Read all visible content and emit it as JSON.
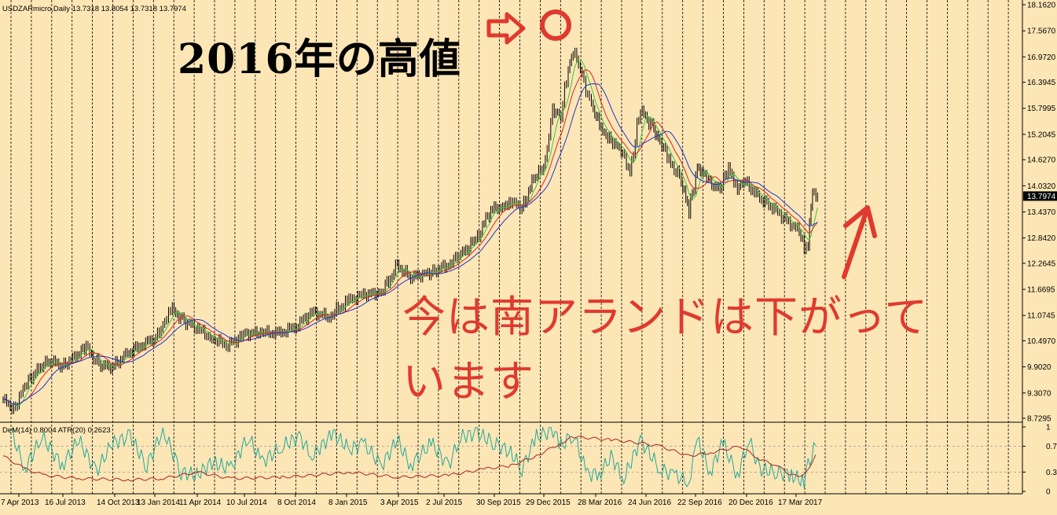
{
  "window": {
    "symbol_header": "USDZARmicro,Daily  13.7318 13.8054 13.7318 13.7974",
    "indicator_header": "DeM(14) 0.8004  ATR(20) 0.2623"
  },
  "annotations": {
    "high_label": "2016年の高値",
    "current_label": "今は南アランドは下がっています"
  },
  "colors": {
    "background": "#fde6b6",
    "grid": "#000000",
    "candles": "#000000",
    "ma_fast": "#33cc33",
    "ma_mid": "#dd2222",
    "ma_slow": "#2233cc",
    "demarker": "#22a99a",
    "atr": "#aa2222",
    "annotation_red": "#e03a2e"
  },
  "chart_data": [
    {
      "type": "line",
      "title": "USDZARmicro,Daily",
      "ohlc_last": {
        "open": 13.7318,
        "high": 13.8054,
        "low": 13.7318,
        "close": 13.7974
      },
      "ylim": [
        8.7295,
        18.162
      ],
      "y_ticks": [
        "18.1620",
        "17.5670",
        "16.9720",
        "16.3945",
        "15.7995",
        "15.2045",
        "14.6270",
        "14.0320",
        "13.4370",
        "12.8420",
        "12.2645",
        "11.6695",
        "11.0745",
        "10.4970",
        "9.9020",
        "9.3070",
        "8.7295"
      ],
      "current_price_label": "13.7974",
      "x_tick_labels": [
        "7 Apr 2013",
        "16 Jul 2013",
        "14 Oct 2013",
        "13 Jan 2014",
        "11 Apr 2014",
        "10 Jul 2014",
        "8 Oct 2014",
        "8 Jan 2015",
        "3 Apr 2015",
        "2 Jul 2015",
        "30 Sep 2015",
        "29 Dec 2015",
        "28 Mar 2016",
        "24 Jun 2016",
        "22 Sep 2016",
        "20 Dec 2016",
        "17 Mar 2017"
      ],
      "grid": "vertical-dashed",
      "series": [
        {
          "values": [
            {
              "x": "2013-04-01",
              "y": 9.15
            },
            {
              "x": "2013-04-20",
              "y": 8.95
            },
            {
              "x": "2013-05-10",
              "y": 9.45
            },
            {
              "x": "2013-06-01",
              "y": 9.85
            },
            {
              "x": "2013-06-25",
              "y": 10.05
            },
            {
              "x": "2013-07-16",
              "y": 9.92
            },
            {
              "x": "2013-08-10",
              "y": 10.15
            },
            {
              "x": "2013-08-28",
              "y": 10.35
            },
            {
              "x": "2013-09-20",
              "y": 9.95
            },
            {
              "x": "2013-10-14",
              "y": 9.9
            },
            {
              "x": "2013-11-10",
              "y": 10.2
            },
            {
              "x": "2013-12-10",
              "y": 10.45
            },
            {
              "x": "2013-12-31",
              "y": 10.55
            },
            {
              "x": "2014-01-13",
              "y": 10.9
            },
            {
              "x": "2014-01-30",
              "y": 11.2
            },
            {
              "x": "2014-02-20",
              "y": 10.95
            },
            {
              "x": "2014-03-20",
              "y": 10.75
            },
            {
              "x": "2014-04-11",
              "y": 10.55
            },
            {
              "x": "2014-05-10",
              "y": 10.4
            },
            {
              "x": "2014-06-10",
              "y": 10.65
            },
            {
              "x": "2014-07-10",
              "y": 10.7
            },
            {
              "x": "2014-08-10",
              "y": 10.65
            },
            {
              "x": "2014-09-10",
              "y": 10.85
            },
            {
              "x": "2014-10-08",
              "y": 11.15
            },
            {
              "x": "2014-11-08",
              "y": 11.05
            },
            {
              "x": "2014-12-10",
              "y": 11.4
            },
            {
              "x": "2015-01-08",
              "y": 11.55
            },
            {
              "x": "2015-02-10",
              "y": 11.6
            },
            {
              "x": "2015-03-10",
              "y": 12.2
            },
            {
              "x": "2015-04-03",
              "y": 11.95
            },
            {
              "x": "2015-05-10",
              "y": 12.05
            },
            {
              "x": "2015-06-10",
              "y": 12.25
            },
            {
              "x": "2015-07-02",
              "y": 12.45
            },
            {
              "x": "2015-08-01",
              "y": 12.85
            },
            {
              "x": "2015-08-25",
              "y": 13.5
            },
            {
              "x": "2015-09-15",
              "y": 13.55
            },
            {
              "x": "2015-09-30",
              "y": 13.7
            },
            {
              "x": "2015-10-20",
              "y": 13.5
            },
            {
              "x": "2015-11-10",
              "y": 14.2
            },
            {
              "x": "2015-12-01",
              "y": 14.5
            },
            {
              "x": "2015-12-14",
              "y": 15.8
            },
            {
              "x": "2015-12-29",
              "y": 15.6
            },
            {
              "x": "2016-01-11",
              "y": 16.7
            },
            {
              "x": "2016-01-20",
              "y": 17.15
            },
            {
              "x": "2016-02-05",
              "y": 16.5
            },
            {
              "x": "2016-02-25",
              "y": 15.8
            },
            {
              "x": "2016-03-10",
              "y": 15.3
            },
            {
              "x": "2016-03-28",
              "y": 15.1
            },
            {
              "x": "2016-04-15",
              "y": 14.8
            },
            {
              "x": "2016-05-01",
              "y": 14.4
            },
            {
              "x": "2016-05-20",
              "y": 15.75
            },
            {
              "x": "2016-06-10",
              "y": 15.4
            },
            {
              "x": "2016-06-24",
              "y": 15.05
            },
            {
              "x": "2016-07-10",
              "y": 14.6
            },
            {
              "x": "2016-08-01",
              "y": 14.2
            },
            {
              "x": "2016-08-15",
              "y": 13.4
            },
            {
              "x": "2016-08-30",
              "y": 14.5
            },
            {
              "x": "2016-09-10",
              "y": 14.3
            },
            {
              "x": "2016-09-22",
              "y": 14.1
            },
            {
              "x": "2016-10-10",
              "y": 13.95
            },
            {
              "x": "2016-10-25",
              "y": 14.45
            },
            {
              "x": "2016-11-10",
              "y": 14.0
            },
            {
              "x": "2016-11-25",
              "y": 14.1
            },
            {
              "x": "2016-12-20",
              "y": 13.75
            },
            {
              "x": "2017-01-15",
              "y": 13.5
            },
            {
              "x": "2017-02-10",
              "y": 13.2
            },
            {
              "x": "2017-03-01",
              "y": 13.0
            },
            {
              "x": "2017-03-10",
              "y": 12.55
            },
            {
              "x": "2017-03-17",
              "y": 12.8
            },
            {
              "x": "2017-03-25",
              "y": 13.85
            },
            {
              "x": "2017-04-03",
              "y": 13.8
            }
          ]
        }
      ]
    },
    {
      "type": "line",
      "title": "DeM(14) 0.8004  ATR(20) 0.2623",
      "ylim": [
        0,
        1
      ],
      "y_ticks": [
        "1",
        "0.7",
        "0.3",
        "0"
      ],
      "reference_levels": [
        0.7,
        0.3
      ],
      "series": [
        {
          "indicator": "DeMarker",
          "values": [
            {
              "x": "2013-04-15",
              "y": 0.95
            },
            {
              "x": "2013-05-10",
              "y": 0.35
            },
            {
              "x": "2013-06-10",
              "y": 0.85
            },
            {
              "x": "2013-07-16",
              "y": 0.4
            },
            {
              "x": "2013-08-15",
              "y": 0.8
            },
            {
              "x": "2013-09-15",
              "y": 0.3
            },
            {
              "x": "2013-10-14",
              "y": 0.75
            },
            {
              "x": "2013-11-15",
              "y": 0.85
            },
            {
              "x": "2013-12-15",
              "y": 0.4
            },
            {
              "x": "2014-01-13",
              "y": 0.95
            },
            {
              "x": "2014-02-15",
              "y": 0.3
            },
            {
              "x": "2014-03-15",
              "y": 0.25
            },
            {
              "x": "2014-04-11",
              "y": 0.45
            },
            {
              "x": "2014-05-15",
              "y": 0.35
            },
            {
              "x": "2014-06-15",
              "y": 0.85
            },
            {
              "x": "2014-07-10",
              "y": 0.45
            },
            {
              "x": "2014-08-15",
              "y": 0.7
            },
            {
              "x": "2014-09-15",
              "y": 0.85
            },
            {
              "x": "2014-10-08",
              "y": 0.55
            },
            {
              "x": "2014-11-15",
              "y": 0.9
            },
            {
              "x": "2014-12-15",
              "y": 0.65
            },
            {
              "x": "2015-01-08",
              "y": 0.75
            },
            {
              "x": "2015-02-10",
              "y": 0.4
            },
            {
              "x": "2015-03-10",
              "y": 0.8
            },
            {
              "x": "2015-04-03",
              "y": 0.4
            },
            {
              "x": "2015-05-10",
              "y": 0.75
            },
            {
              "x": "2015-06-10",
              "y": 0.4
            },
            {
              "x": "2015-07-02",
              "y": 0.85
            },
            {
              "x": "2015-08-01",
              "y": 0.9
            },
            {
              "x": "2015-09-01",
              "y": 0.75
            },
            {
              "x": "2015-09-30",
              "y": 0.6
            },
            {
              "x": "2015-10-20",
              "y": 0.35
            },
            {
              "x": "2015-11-15",
              "y": 0.85
            },
            {
              "x": "2015-12-15",
              "y": 0.95
            },
            {
              "x": "2015-12-29",
              "y": 0.7
            },
            {
              "x": "2016-01-20",
              "y": 0.9
            },
            {
              "x": "2016-02-15",
              "y": 0.25
            },
            {
              "x": "2016-03-10",
              "y": 0.3
            },
            {
              "x": "2016-03-28",
              "y": 0.55
            },
            {
              "x": "2016-04-20",
              "y": 0.2
            },
            {
              "x": "2016-05-20",
              "y": 0.8
            },
            {
              "x": "2016-06-24",
              "y": 0.35
            },
            {
              "x": "2016-07-20",
              "y": 0.25
            },
            {
              "x": "2016-08-15",
              "y": 0.15
            },
            {
              "x": "2016-08-30",
              "y": 0.8
            },
            {
              "x": "2016-09-22",
              "y": 0.3
            },
            {
              "x": "2016-10-15",
              "y": 0.75
            },
            {
              "x": "2016-11-10",
              "y": 0.25
            },
            {
              "x": "2016-12-01",
              "y": 0.8
            },
            {
              "x": "2016-12-20",
              "y": 0.35
            },
            {
              "x": "2017-01-20",
              "y": 0.3
            },
            {
              "x": "2017-02-15",
              "y": 0.25
            },
            {
              "x": "2017-03-10",
              "y": 0.15
            },
            {
              "x": "2017-03-17",
              "y": 0.4
            },
            {
              "x": "2017-04-03",
              "y": 0.8
            }
          ]
        },
        {
          "indicator": "ATR(20)",
          "values": [
            {
              "x": "2013-04-01",
              "y": 0.55
            },
            {
              "x": "2013-05-10",
              "y": 0.35
            },
            {
              "x": "2013-06-15",
              "y": 0.25
            },
            {
              "x": "2013-08-15",
              "y": 0.2
            },
            {
              "x": "2013-11-15",
              "y": 0.18
            },
            {
              "x": "2014-01-13",
              "y": 0.2
            },
            {
              "x": "2014-03-15",
              "y": 0.3
            },
            {
              "x": "2014-05-15",
              "y": 0.2
            },
            {
              "x": "2014-08-15",
              "y": 0.22
            },
            {
              "x": "2014-10-08",
              "y": 0.25
            },
            {
              "x": "2014-12-15",
              "y": 0.3
            },
            {
              "x": "2015-03-10",
              "y": 0.22
            },
            {
              "x": "2015-06-10",
              "y": 0.25
            },
            {
              "x": "2015-08-15",
              "y": 0.35
            },
            {
              "x": "2015-09-30",
              "y": 0.4
            },
            {
              "x": "2015-11-15",
              "y": 0.55
            },
            {
              "x": "2015-12-29",
              "y": 0.75
            },
            {
              "x": "2016-01-20",
              "y": 0.85
            },
            {
              "x": "2016-03-28",
              "y": 0.8
            },
            {
              "x": "2016-05-20",
              "y": 0.75
            },
            {
              "x": "2016-06-24",
              "y": 0.7
            },
            {
              "x": "2016-08-15",
              "y": 0.55
            },
            {
              "x": "2016-09-22",
              "y": 0.6
            },
            {
              "x": "2016-11-15",
              "y": 0.7
            },
            {
              "x": "2016-12-20",
              "y": 0.5
            },
            {
              "x": "2017-01-20",
              "y": 0.4
            },
            {
              "x": "2017-02-15",
              "y": 0.25
            },
            {
              "x": "2017-03-10",
              "y": 0.25
            },
            {
              "x": "2017-04-03",
              "y": 0.6
            }
          ]
        }
      ]
    }
  ]
}
